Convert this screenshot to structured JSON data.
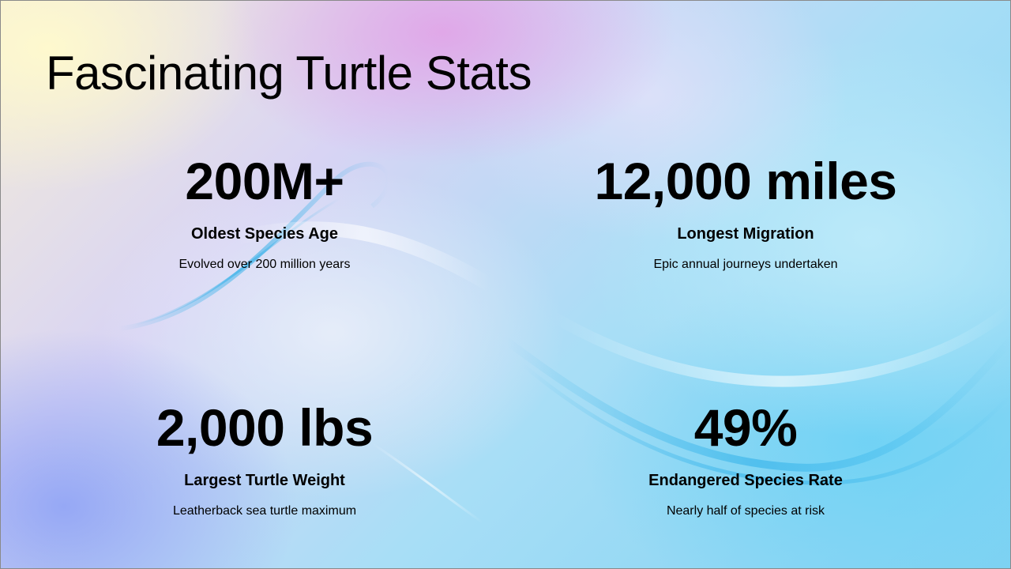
{
  "slide": {
    "title": "Fascinating Turtle Stats",
    "colors": {
      "text": "#000000",
      "bg_warm": "#fff6c8",
      "bg_pink": "#e3a6e4",
      "bg_lavender": "#d8d4f4",
      "bg_sky": "#a8def6",
      "bg_cyan": "#3cc2ee"
    },
    "stats": [
      {
        "value": "200M+",
        "label": "Oldest Species Age",
        "description": "Evolved over 200 million years"
      },
      {
        "value": "12,000 miles",
        "label": "Longest Migration",
        "description": "Epic annual journeys undertaken"
      },
      {
        "value": "2,000 lbs",
        "label": "Largest Turtle Weight",
        "description": "Leatherback sea turtle maximum"
      },
      {
        "value": "49%",
        "label": "Endangered Species Rate",
        "description": "Nearly half of species at risk"
      }
    ]
  }
}
